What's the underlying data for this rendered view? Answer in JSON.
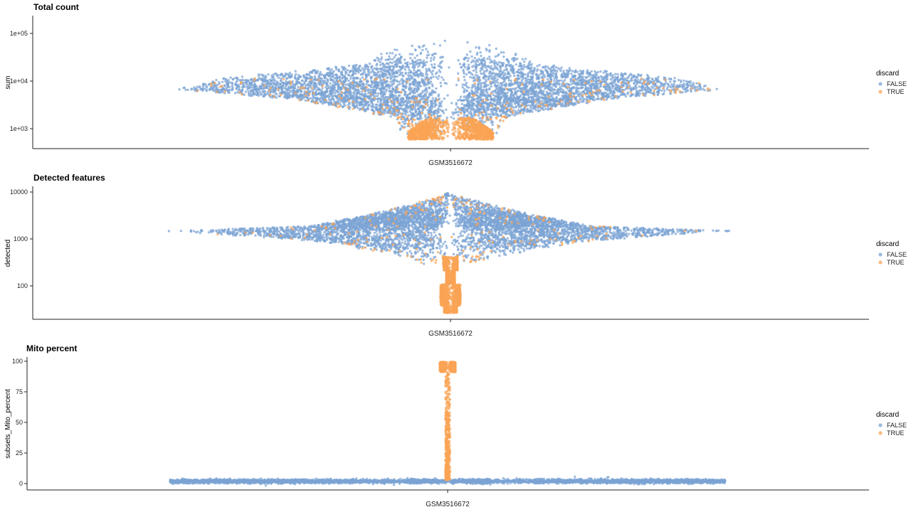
{
  "colors": {
    "FALSE": "#7ba3d4",
    "TRUE": "#f9a455"
  },
  "chart_data": [
    {
      "type": "scatter",
      "subtype": "beeswarm-violin",
      "title": "Total count",
      "ylabel": "sum",
      "xlabel": "",
      "categories": [
        "GSM3516672"
      ],
      "y_scale": "log10",
      "ylim": [
        380,
        200000
      ],
      "yticks": [
        1000,
        10000,
        100000
      ],
      "ytick_labels": [
        "1e+03",
        "1e+04",
        "1e+05"
      ],
      "legend": {
        "title": "discard",
        "entries": [
          "FALSE",
          "TRUE"
        ],
        "position": "right"
      },
      "series": [
        {
          "name": "FALSE",
          "min": 1200,
          "median": 5000,
          "max": 170000
        },
        {
          "name": "TRUE",
          "min": 550,
          "max": 9000,
          "concentrated_range": [
            550,
            1200
          ]
        }
      ]
    },
    {
      "type": "scatter",
      "subtype": "beeswarm-violin",
      "title": "Detected features",
      "ylabel": "detected",
      "xlabel": "",
      "categories": [
        "GSM3516672"
      ],
      "y_scale": "log10",
      "ylim": [
        19,
        13500
      ],
      "yticks": [
        100,
        1000,
        10000
      ],
      "ytick_labels": [
        "100",
        "1000",
        "10000"
      ],
      "legend": {
        "title": "discard",
        "entries": [
          "FALSE",
          "TRUE"
        ],
        "position": "right"
      },
      "series": [
        {
          "name": "FALSE",
          "min": 450,
          "median": 1700,
          "max": 10000
        },
        {
          "name": "TRUE",
          "min": 25,
          "max": 6500,
          "concentrated_range": [
            25,
            450
          ]
        }
      ]
    },
    {
      "type": "scatter",
      "subtype": "beeswarm-violin",
      "title": "Mito percent",
      "ylabel": "subsets_Mito_percent",
      "xlabel": "",
      "categories": [
        "GSM3516672"
      ],
      "y_scale": "linear",
      "ylim": [
        -5,
        102
      ],
      "yticks": [
        0,
        25,
        50,
        75,
        100
      ],
      "ytick_labels": [
        "0",
        "25",
        "50",
        "75",
        "100"
      ],
      "legend": {
        "title": "discard",
        "entries": [
          "FALSE",
          "TRUE"
        ],
        "position": "right"
      },
      "series": [
        {
          "name": "FALSE",
          "min": 0,
          "median": 2,
          "max": 6
        },
        {
          "name": "TRUE",
          "min": 3,
          "max": 98,
          "concentrated_range": [
            90,
            98
          ]
        }
      ]
    }
  ]
}
